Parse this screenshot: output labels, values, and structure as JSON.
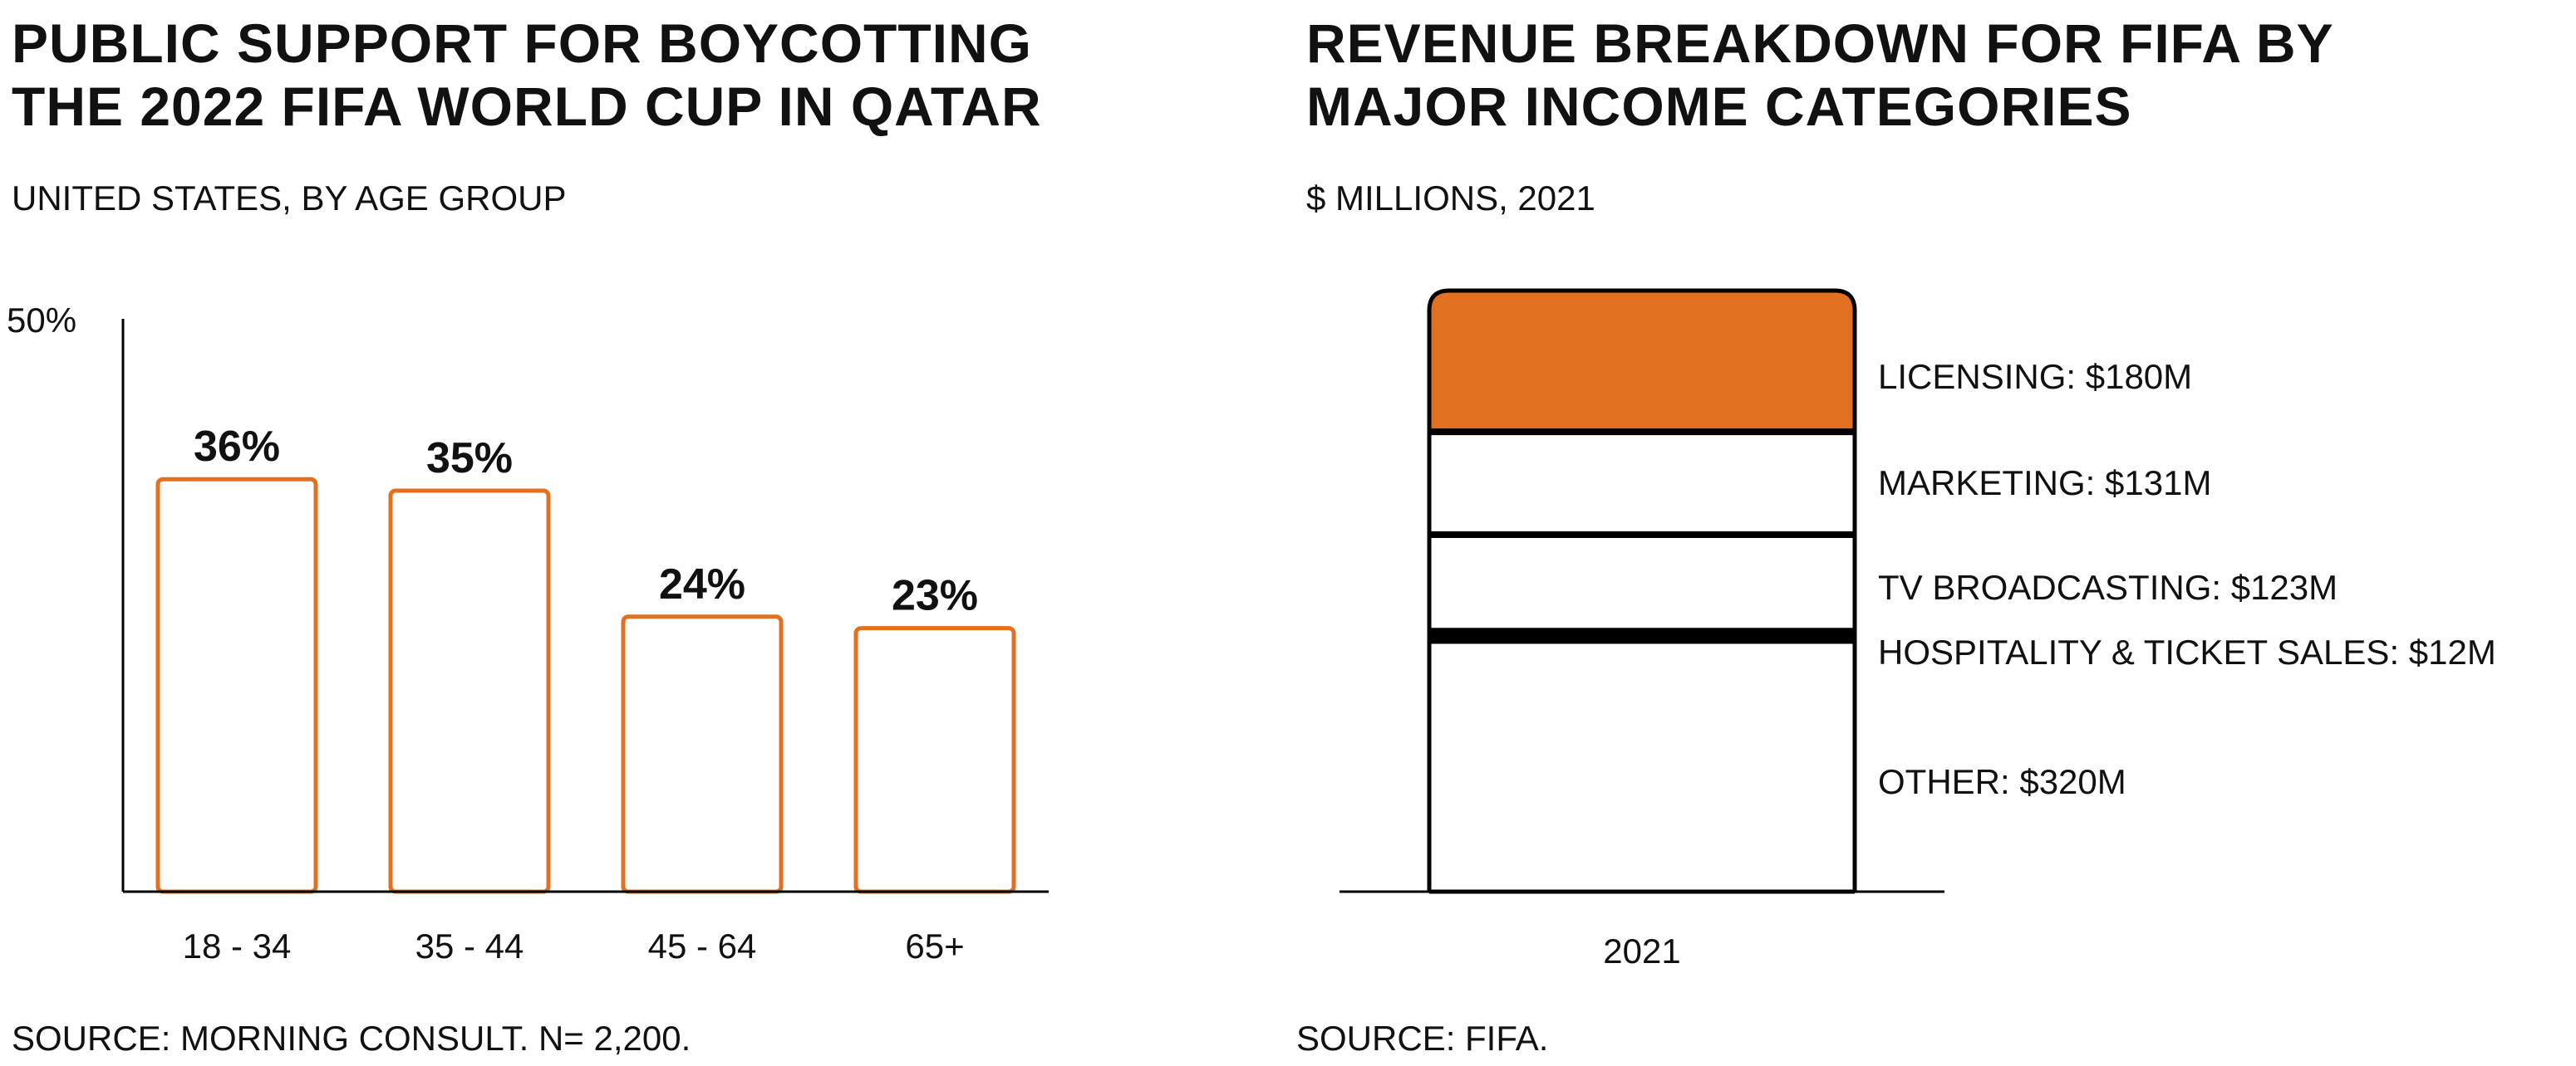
{
  "colors": {
    "accent": "#E17020",
    "ink": "#000000",
    "background": "#FFFFFF"
  },
  "left": {
    "title": "PUBLIC SUPPORT FOR BOYCOTTING\nTHE 2022 FIFA WORLD CUP IN QATAR",
    "subtitle": "UNITED STATES, BY AGE GROUP",
    "source": "SOURCE: MORNING CONSULT. N= 2,200."
  },
  "right": {
    "title": "REVENUE BREAKDOWN FOR FIFA BY\nMAJOR INCOME CATEGORIES",
    "subtitle": "$ MILLIONS, 2021",
    "source": "SOURCE: FIFA."
  },
  "chart_data": [
    {
      "type": "bar",
      "categories": [
        "18 - 34",
        "35 - 44",
        "45 - 64",
        "65+"
      ],
      "values": [
        36,
        35,
        24,
        23
      ],
      "value_labels": [
        "36%",
        "35%",
        "24%",
        "23%"
      ],
      "ylim": [
        0,
        50
      ],
      "y_tick_label": "50%",
      "xlabel": "",
      "ylabel": "",
      "grid": false,
      "legend": "none",
      "bar_style": "outlined"
    },
    {
      "type": "bar",
      "stacked": true,
      "categories": [
        "2021"
      ],
      "unit": "$ millions",
      "series": [
        {
          "name": "OTHER",
          "label": "OTHER: $320M",
          "value": 320,
          "highlight": false
        },
        {
          "name": "HOSPITALITY & TICKET SALES",
          "label": "HOSPITALITY & TICKET SALES: $12M",
          "value": 12,
          "highlight": false
        },
        {
          "name": "TV BROADCASTING",
          "label": "TV BROADCASTING: $123M",
          "value": 123,
          "highlight": false
        },
        {
          "name": "MARKETING",
          "label": "MARKETING: $131M",
          "value": 131,
          "highlight": false
        },
        {
          "name": "LICENSING",
          "label": "LICENSING: $180M",
          "value": 180,
          "highlight": true
        }
      ],
      "grid": false,
      "legend": "direct labels, right of bar"
    }
  ]
}
